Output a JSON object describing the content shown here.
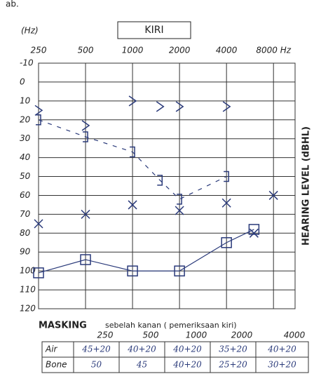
{
  "caption_top": "ab.",
  "chart_data": {
    "type": "audiogram",
    "x_unit_label": "(Hz)",
    "title": "KIRI",
    "y_label": "HEARING LEVEL (dBHL)",
    "log_x": true,
    "invert_y": true,
    "grid": true,
    "color": "#2a3a7a",
    "xlim": [
      250,
      11000
    ],
    "xticks": [
      250,
      500,
      1000,
      2000,
      4000,
      {
        "value": 8000,
        "label": "8000 Hz"
      }
    ],
    "ylim": [
      -10,
      120
    ],
    "yticks": [
      -10,
      0,
      10,
      20,
      30,
      40,
      50,
      60,
      70,
      80,
      90,
      100,
      110,
      120
    ],
    "series": [
      {
        "marker": "x",
        "connected": false,
        "x": [
          250,
          500,
          1000,
          2000,
          4000,
          6000,
          8000
        ],
        "values": [
          75,
          70,
          65,
          68,
          64,
          80,
          60
        ]
      },
      {
        "marker": "square",
        "connected": true,
        "x": [
          250,
          500,
          1000,
          2000,
          4000,
          6000
        ],
        "values": [
          101,
          94,
          100,
          100,
          85,
          78
        ]
      },
      {
        "marker": "gt",
        "connected": false,
        "x": [
          250,
          500,
          1000,
          1500,
          2000,
          4000
        ],
        "values": [
          15,
          23,
          10,
          13,
          13,
          13
        ]
      },
      {
        "marker": "bracket",
        "connected": true,
        "x": [
          250,
          500,
          1000,
          1500,
          2000,
          4000
        ],
        "values": [
          20,
          29,
          37,
          52,
          62,
          50
        ]
      }
    ]
  },
  "masking": {
    "title": "MASKING",
    "note": "sebelah kanan ( pemeriksaan kiri)",
    "frequencies": [
      "250",
      "500",
      "1000",
      "2000",
      "4000"
    ],
    "rows": [
      [
        "Air",
        "45+20",
        "40+20",
        "40+20",
        "35+20",
        "40+20"
      ],
      [
        "Bone",
        "50",
        "45",
        "40+20",
        "25+20",
        "30+20"
      ]
    ]
  }
}
